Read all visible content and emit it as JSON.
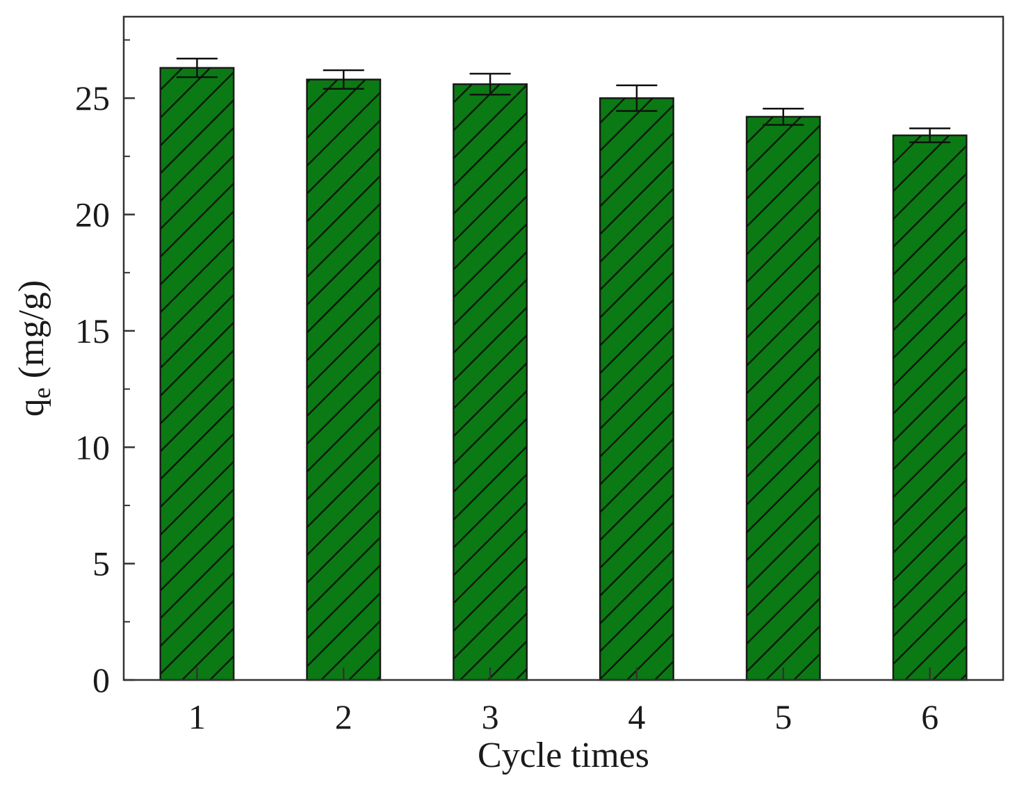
{
  "chart_data": {
    "type": "bar",
    "categories": [
      "1",
      "2",
      "3",
      "4",
      "5",
      "6"
    ],
    "series": [
      {
        "values": [
          26.3,
          25.8,
          25.6,
          25.0,
          24.2,
          23.4
        ],
        "errors": [
          0.4,
          0.4,
          0.45,
          0.55,
          0.35,
          0.3
        ]
      }
    ],
    "xlabel": "Cycle times",
    "ylabel_main": "q",
    "ylabel_sub": "e",
    "ylabel_unit": " (mg/g)",
    "ylim": [
      0,
      28.5
    ],
    "yticks": [
      0,
      5,
      10,
      15,
      20,
      25
    ],
    "yticks_minor": [
      2.5,
      7.5,
      12.5,
      17.5,
      22.5,
      27.5
    ],
    "grid": false,
    "legend": "none",
    "bar_color": "#0b7a14",
    "hatch_color": "#0a1a0a",
    "hatch": "diagonal"
  }
}
